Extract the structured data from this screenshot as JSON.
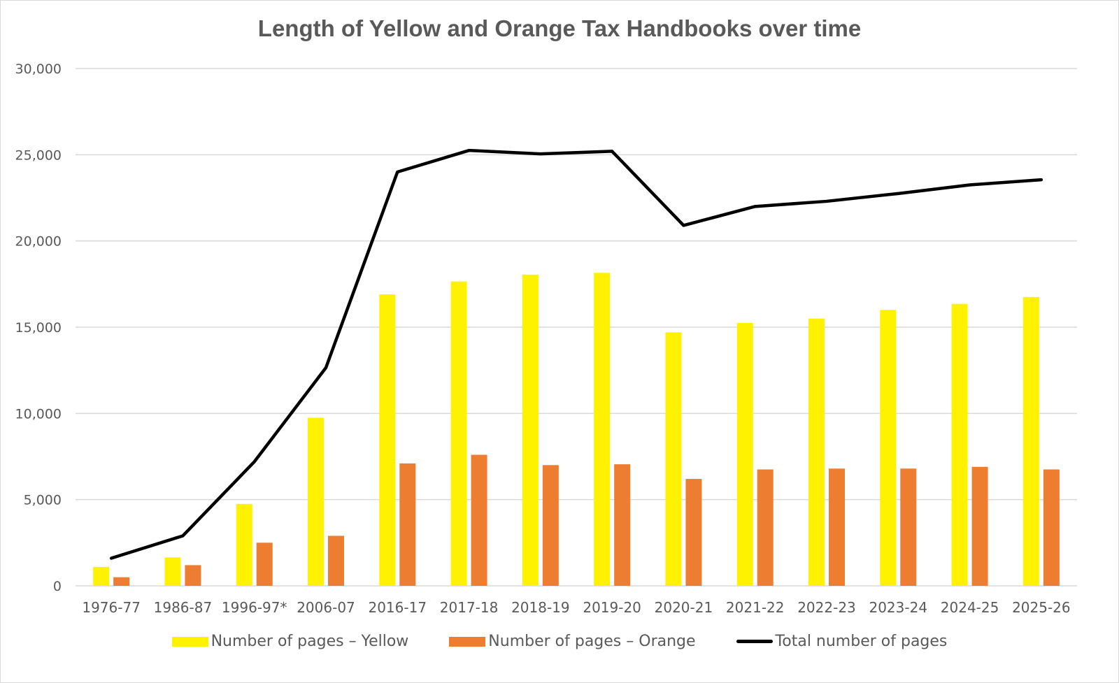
{
  "chart_data": {
    "type": "bar",
    "title": "Length of Yellow and Orange Tax Handbooks over time",
    "xlabel": "",
    "ylabel": "",
    "ylim": [
      0,
      30000
    ],
    "yticks": [
      0,
      5000,
      10000,
      15000,
      20000,
      25000,
      30000
    ],
    "ytick_labels": [
      "0",
      "5,000",
      "10,000",
      "15,000",
      "20,000",
      "25,000",
      "30,000"
    ],
    "grid": true,
    "legend_position": "bottom",
    "categories": [
      "1976-77",
      "1986-87",
      "1996-97*",
      "2006-07",
      "2016-17",
      "2017-18",
      "2018-19",
      "2019-20",
      "2020-21",
      "2021-22",
      "2022-23",
      "2023-24",
      "2024-25",
      "2025-26"
    ],
    "series": [
      {
        "name": "Number of pages – Yellow",
        "type": "bar",
        "color": "#FFF200",
        "values": [
          1100,
          1650,
          4750,
          9750,
          16900,
          17650,
          18050,
          18150,
          14700,
          15250,
          15500,
          16000,
          16350,
          16750
        ]
      },
      {
        "name": "Number of pages – Orange",
        "type": "bar",
        "color": "#ED7D31",
        "values": [
          500,
          1200,
          2500,
          2900,
          7100,
          7600,
          7000,
          7050,
          6200,
          6750,
          6800,
          6800,
          6900,
          6750
        ]
      },
      {
        "name": "Total number of pages",
        "type": "line",
        "color": "#000000",
        "values": [
          1600,
          2900,
          7200,
          12650,
          24000,
          25250,
          25050,
          25200,
          20900,
          22000,
          22300,
          22750,
          23250,
          23550
        ]
      }
    ]
  }
}
